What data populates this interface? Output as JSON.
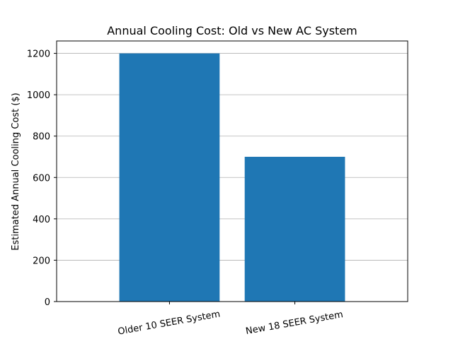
{
  "chart_data": {
    "type": "bar",
    "title": "Annual Cooling Cost: Old vs New AC System",
    "xlabel": "",
    "ylabel": "Estimated Annual Cooling Cost ($)",
    "categories": [
      "Older 10 SEER System",
      "New 18 SEER System"
    ],
    "values": [
      1200,
      700
    ],
    "ylim": [
      0,
      1260
    ],
    "yticks": [
      0,
      200,
      400,
      600,
      800,
      1000,
      1200
    ],
    "grid": "y-axis",
    "bar_color": "#1f77b4",
    "grid_color": "#b0b0b0"
  }
}
